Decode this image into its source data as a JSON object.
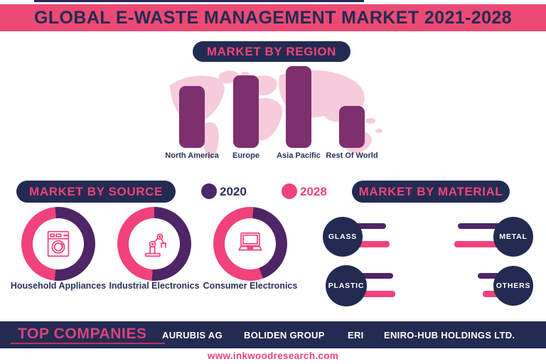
{
  "colors": {
    "pink": "#F0437B",
    "banner_pink": "#EC4A74",
    "navy": "#232B52",
    "bar_purple": "#7E2F6D",
    "donut_purple": "#4E2566",
    "map_pink": "#F6CBDB"
  },
  "title_banner": {
    "text": "GLOBAL E-WASTE MANAGEMENT MARKET 2021-2028"
  },
  "region_section": {
    "title": "MARKET BY REGION",
    "labels": [
      "North America",
      "Europe",
      "Asia Pacific",
      "Rest Of World"
    ]
  },
  "source_section": {
    "title": "MARKET BY SOURCE",
    "legend": [
      {
        "label": "2020",
        "color": "#4E2566"
      },
      {
        "label": "2028",
        "color": "#F0437B"
      }
    ],
    "donuts": [
      {
        "label": "Household Appliances",
        "icon": "washing-machine-icon",
        "pct_2020": 53,
        "pct_2028": 47,
        "rotation_deg": -5
      },
      {
        "label": "Industrial Electronics",
        "icon": "robot-arm-icon",
        "pct_2020": 51,
        "pct_2028": 49,
        "rotation_deg": 0
      },
      {
        "label": "Consumer Electronics",
        "icon": "laptop-icon",
        "pct_2020": 43,
        "pct_2028": 57,
        "rotation_deg": 5
      }
    ]
  },
  "material_section": {
    "title": "MARKET BY MATERIAL",
    "items": [
      {
        "label": "GLASS",
        "side": "left",
        "len_2020": 53,
        "len_2028": 58
      },
      {
        "label": "PLASTIC",
        "side": "left",
        "len_2020": 58,
        "len_2028": 61
      },
      {
        "label": "METAL",
        "side": "right",
        "len_2020": 70,
        "len_2028": 75
      },
      {
        "label": "OTHERS",
        "side": "right",
        "len_2020": 38,
        "len_2028": 31
      }
    ]
  },
  "companies_bar": {
    "title": "TOP COMPANIES",
    "companies": [
      "AURUBIS AG",
      "BOLIDEN GROUP",
      "ERI",
      "ENIRO-HUB HOLDINGS LTD."
    ]
  },
  "footer": {
    "url": "www.inkwoodresearch.com"
  },
  "chart_data": [
    {
      "type": "bar",
      "title": "MARKET BY REGION",
      "categories": [
        "North America",
        "Europe",
        "Asia Pacific",
        "Rest Of World"
      ],
      "values": [
        76,
        89,
        100,
        51
      ],
      "xlabel": "",
      "ylabel": "",
      "note": "No numeric axis shown; values estimated as % of tallest bar",
      "bar_color": "#7E2F6D",
      "grid": false,
      "legend_position": "none"
    },
    {
      "type": "pie",
      "title": "Household Appliances (Market by Source)",
      "slices": [
        {
          "label": "2020",
          "value": 53,
          "color": "#4E2566"
        },
        {
          "label": "2028",
          "value": 47,
          "color": "#F0437B"
        }
      ],
      "note": "Donut split estimated from arc angles; no numeric labels shown"
    },
    {
      "type": "pie",
      "title": "Industrial Electronics (Market by Source)",
      "slices": [
        {
          "label": "2020",
          "value": 51,
          "color": "#4E2566"
        },
        {
          "label": "2028",
          "value": 49,
          "color": "#F0437B"
        }
      ],
      "note": "Donut split estimated from arc angles; no numeric labels shown"
    },
    {
      "type": "pie",
      "title": "Consumer Electronics (Market by Source)",
      "slices": [
        {
          "label": "2020",
          "value": 43,
          "color": "#4E2566"
        },
        {
          "label": "2028",
          "value": 57,
          "color": "#F0437B"
        }
      ],
      "note": "Donut split estimated from arc angles; no numeric labels shown"
    },
    {
      "type": "bar",
      "title": "MARKET BY MATERIAL",
      "categories": [
        "Glass",
        "Plastic",
        "Metal",
        "Others"
      ],
      "series": [
        {
          "name": "2020",
          "values": [
            53,
            58,
            70,
            38
          ],
          "color": "#4E2566"
        },
        {
          "name": "2028",
          "values": [
            58,
            61,
            75,
            31
          ],
          "color": "#F0437B"
        }
      ],
      "note": "Horizontal bar lengths in px, estimated; no numeric labels shown",
      "legend_position": "top-center (shared with source section)"
    }
  ]
}
